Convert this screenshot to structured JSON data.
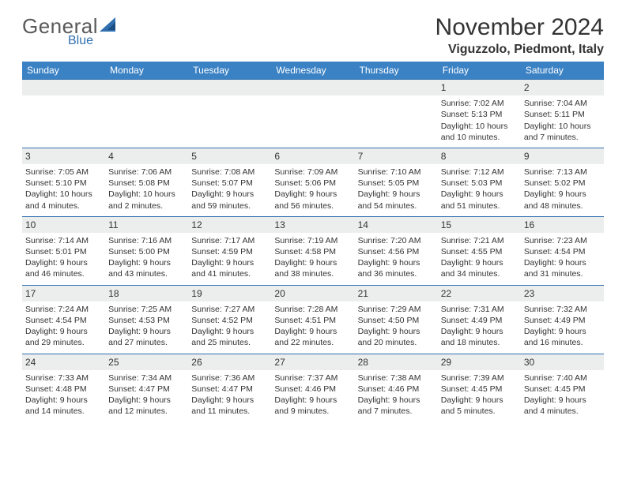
{
  "logo": {
    "general": "General",
    "blue": "Blue"
  },
  "title": "November 2024",
  "location": "Viguzzolo, Piedmont, Italy",
  "colors": {
    "header_bg": "#3b82c4",
    "header_text": "#ffffff",
    "band_bg": "#eceeee",
    "border": "#2f6fb0",
    "text": "#333333",
    "logo_gray": "#5a5a5a",
    "logo_blue": "#2f6fb0"
  },
  "day_names": [
    "Sunday",
    "Monday",
    "Tuesday",
    "Wednesday",
    "Thursday",
    "Friday",
    "Saturday"
  ],
  "weeks": [
    [
      null,
      null,
      null,
      null,
      null,
      {
        "n": "1",
        "sr": "Sunrise: 7:02 AM",
        "ss": "Sunset: 5:13 PM",
        "dl": "Daylight: 10 hours and 10 minutes."
      },
      {
        "n": "2",
        "sr": "Sunrise: 7:04 AM",
        "ss": "Sunset: 5:11 PM",
        "dl": "Daylight: 10 hours and 7 minutes."
      }
    ],
    [
      {
        "n": "3",
        "sr": "Sunrise: 7:05 AM",
        "ss": "Sunset: 5:10 PM",
        "dl": "Daylight: 10 hours and 4 minutes."
      },
      {
        "n": "4",
        "sr": "Sunrise: 7:06 AM",
        "ss": "Sunset: 5:08 PM",
        "dl": "Daylight: 10 hours and 2 minutes."
      },
      {
        "n": "5",
        "sr": "Sunrise: 7:08 AM",
        "ss": "Sunset: 5:07 PM",
        "dl": "Daylight: 9 hours and 59 minutes."
      },
      {
        "n": "6",
        "sr": "Sunrise: 7:09 AM",
        "ss": "Sunset: 5:06 PM",
        "dl": "Daylight: 9 hours and 56 minutes."
      },
      {
        "n": "7",
        "sr": "Sunrise: 7:10 AM",
        "ss": "Sunset: 5:05 PM",
        "dl": "Daylight: 9 hours and 54 minutes."
      },
      {
        "n": "8",
        "sr": "Sunrise: 7:12 AM",
        "ss": "Sunset: 5:03 PM",
        "dl": "Daylight: 9 hours and 51 minutes."
      },
      {
        "n": "9",
        "sr": "Sunrise: 7:13 AM",
        "ss": "Sunset: 5:02 PM",
        "dl": "Daylight: 9 hours and 48 minutes."
      }
    ],
    [
      {
        "n": "10",
        "sr": "Sunrise: 7:14 AM",
        "ss": "Sunset: 5:01 PM",
        "dl": "Daylight: 9 hours and 46 minutes."
      },
      {
        "n": "11",
        "sr": "Sunrise: 7:16 AM",
        "ss": "Sunset: 5:00 PM",
        "dl": "Daylight: 9 hours and 43 minutes."
      },
      {
        "n": "12",
        "sr": "Sunrise: 7:17 AM",
        "ss": "Sunset: 4:59 PM",
        "dl": "Daylight: 9 hours and 41 minutes."
      },
      {
        "n": "13",
        "sr": "Sunrise: 7:19 AM",
        "ss": "Sunset: 4:58 PM",
        "dl": "Daylight: 9 hours and 38 minutes."
      },
      {
        "n": "14",
        "sr": "Sunrise: 7:20 AM",
        "ss": "Sunset: 4:56 PM",
        "dl": "Daylight: 9 hours and 36 minutes."
      },
      {
        "n": "15",
        "sr": "Sunrise: 7:21 AM",
        "ss": "Sunset: 4:55 PM",
        "dl": "Daylight: 9 hours and 34 minutes."
      },
      {
        "n": "16",
        "sr": "Sunrise: 7:23 AM",
        "ss": "Sunset: 4:54 PM",
        "dl": "Daylight: 9 hours and 31 minutes."
      }
    ],
    [
      {
        "n": "17",
        "sr": "Sunrise: 7:24 AM",
        "ss": "Sunset: 4:54 PM",
        "dl": "Daylight: 9 hours and 29 minutes."
      },
      {
        "n": "18",
        "sr": "Sunrise: 7:25 AM",
        "ss": "Sunset: 4:53 PM",
        "dl": "Daylight: 9 hours and 27 minutes."
      },
      {
        "n": "19",
        "sr": "Sunrise: 7:27 AM",
        "ss": "Sunset: 4:52 PM",
        "dl": "Daylight: 9 hours and 25 minutes."
      },
      {
        "n": "20",
        "sr": "Sunrise: 7:28 AM",
        "ss": "Sunset: 4:51 PM",
        "dl": "Daylight: 9 hours and 22 minutes."
      },
      {
        "n": "21",
        "sr": "Sunrise: 7:29 AM",
        "ss": "Sunset: 4:50 PM",
        "dl": "Daylight: 9 hours and 20 minutes."
      },
      {
        "n": "22",
        "sr": "Sunrise: 7:31 AM",
        "ss": "Sunset: 4:49 PM",
        "dl": "Daylight: 9 hours and 18 minutes."
      },
      {
        "n": "23",
        "sr": "Sunrise: 7:32 AM",
        "ss": "Sunset: 4:49 PM",
        "dl": "Daylight: 9 hours and 16 minutes."
      }
    ],
    [
      {
        "n": "24",
        "sr": "Sunrise: 7:33 AM",
        "ss": "Sunset: 4:48 PM",
        "dl": "Daylight: 9 hours and 14 minutes."
      },
      {
        "n": "25",
        "sr": "Sunrise: 7:34 AM",
        "ss": "Sunset: 4:47 PM",
        "dl": "Daylight: 9 hours and 12 minutes."
      },
      {
        "n": "26",
        "sr": "Sunrise: 7:36 AM",
        "ss": "Sunset: 4:47 PM",
        "dl": "Daylight: 9 hours and 11 minutes."
      },
      {
        "n": "27",
        "sr": "Sunrise: 7:37 AM",
        "ss": "Sunset: 4:46 PM",
        "dl": "Daylight: 9 hours and 9 minutes."
      },
      {
        "n": "28",
        "sr": "Sunrise: 7:38 AM",
        "ss": "Sunset: 4:46 PM",
        "dl": "Daylight: 9 hours and 7 minutes."
      },
      {
        "n": "29",
        "sr": "Sunrise: 7:39 AM",
        "ss": "Sunset: 4:45 PM",
        "dl": "Daylight: 9 hours and 5 minutes."
      },
      {
        "n": "30",
        "sr": "Sunrise: 7:40 AM",
        "ss": "Sunset: 4:45 PM",
        "dl": "Daylight: 9 hours and 4 minutes."
      }
    ]
  ]
}
